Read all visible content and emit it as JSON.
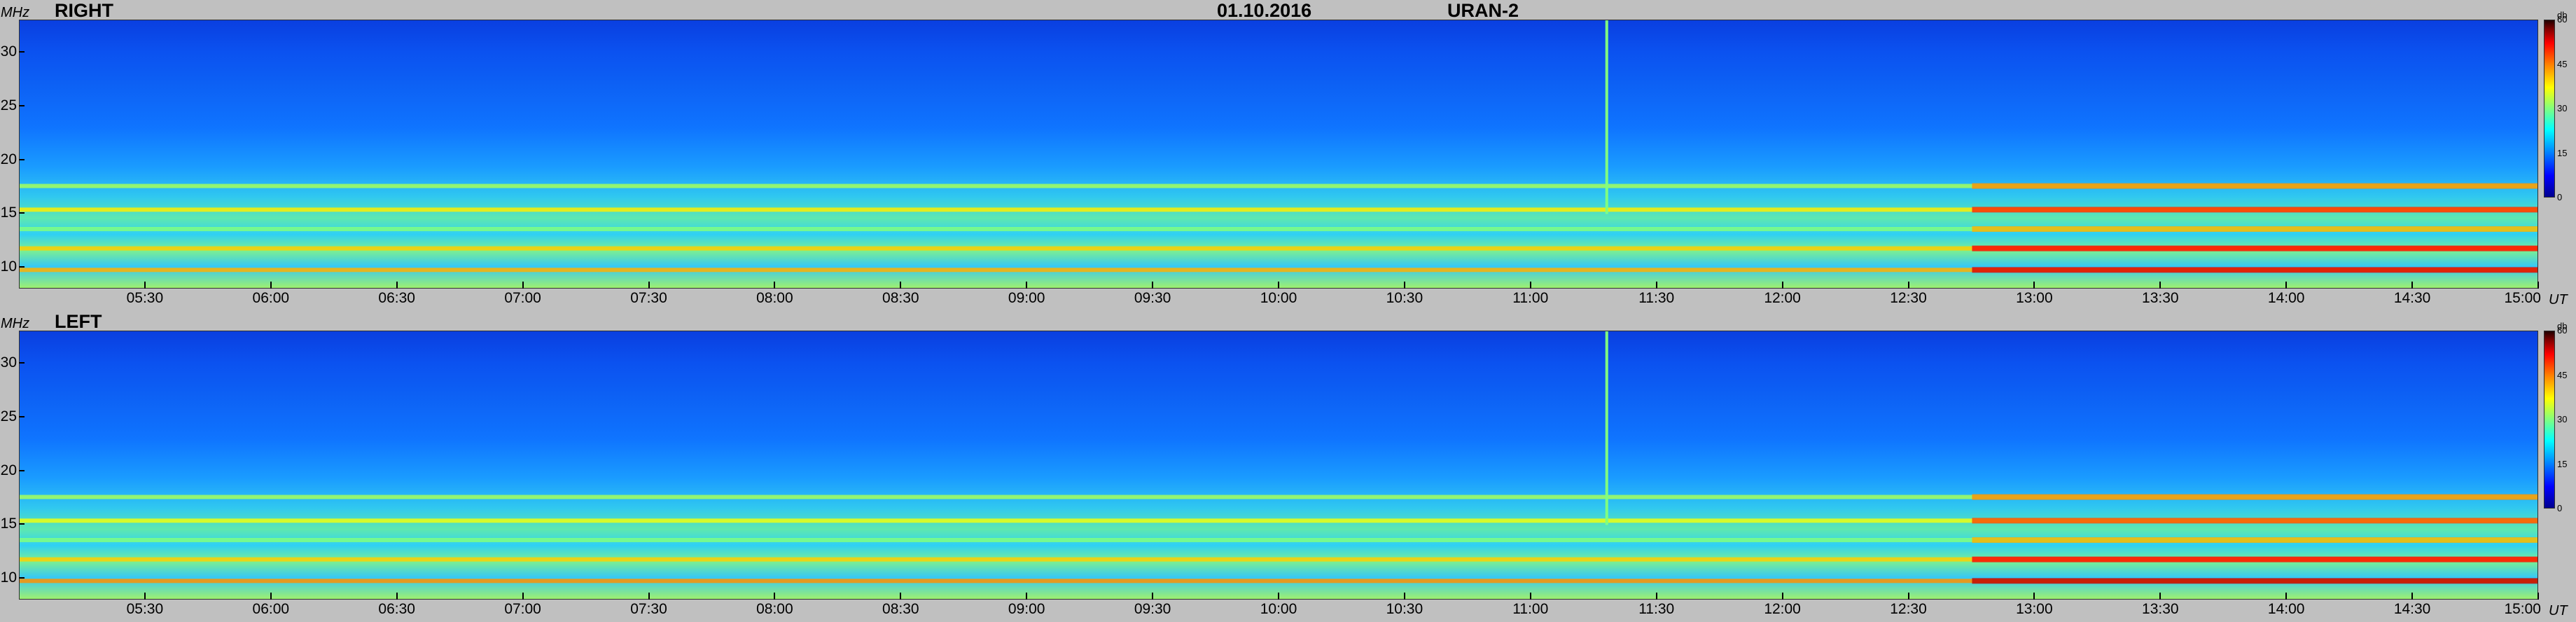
{
  "header": {
    "date": "01.10.2016",
    "station": "URAN-2"
  },
  "axis": {
    "y_unit": "MHz",
    "x_unit": "UT",
    "colorbar_unit": "db"
  },
  "panels": [
    {
      "label": "RIGHT"
    },
    {
      "label": "LEFT"
    }
  ],
  "chart_data": [
    {
      "type": "heatmap",
      "title": "RIGHT",
      "ylabel": "MHz",
      "xlabel": "UT",
      "x_ticks": [
        "05:30",
        "06:00",
        "06:30",
        "07:00",
        "07:30",
        "08:00",
        "08:30",
        "09:00",
        "09:30",
        "10:00",
        "10:30",
        "11:00",
        "11:30",
        "12:00",
        "12:30",
        "13:00",
        "13:30",
        "14:00",
        "14:30",
        "15:00"
      ],
      "y_ticks": [
        10,
        15,
        20,
        25,
        30
      ],
      "xlim": [
        "05:00",
        "15:00"
      ],
      "ylim": [
        8,
        33
      ],
      "colorbar": {
        "label": "db",
        "range": [
          0,
          60
        ],
        "ticks": [
          0,
          15,
          30,
          45,
          60
        ]
      },
      "features": [
        {
          "type": "horizontal_band",
          "freq_mhz": 17.6,
          "intensity_db": 32
        },
        {
          "type": "horizontal_band",
          "freq_mhz": 15.4,
          "intensity_db": 38
        },
        {
          "type": "horizontal_band",
          "freq_mhz": 13.6,
          "intensity_db": 30
        },
        {
          "type": "horizontal_band",
          "freq_mhz": 11.8,
          "intensity_db": 40
        },
        {
          "type": "horizontal_band",
          "freq_mhz": 9.8,
          "intensity_db": 42
        },
        {
          "type": "vertical_burst",
          "time": "11:18",
          "intensity_db": 30
        }
      ]
    },
    {
      "type": "heatmap",
      "title": "LEFT",
      "ylabel": "MHz",
      "xlabel": "UT",
      "x_ticks": [
        "05:30",
        "06:00",
        "06:30",
        "07:00",
        "07:30",
        "08:00",
        "08:30",
        "09:00",
        "09:30",
        "10:00",
        "10:30",
        "11:00",
        "11:30",
        "12:00",
        "12:30",
        "13:00",
        "13:30",
        "14:00",
        "14:30",
        "15:00"
      ],
      "y_ticks": [
        10,
        15,
        20,
        25,
        30
      ],
      "xlim": [
        "05:00",
        "15:00"
      ],
      "ylim": [
        8,
        33
      ],
      "colorbar": {
        "label": "db",
        "range": [
          0,
          60
        ],
        "ticks": [
          0,
          15,
          30,
          45,
          60
        ]
      },
      "features": [
        {
          "type": "horizontal_band",
          "freq_mhz": 17.6,
          "intensity_db": 32
        },
        {
          "type": "horizontal_band",
          "freq_mhz": 15.4,
          "intensity_db": 36
        },
        {
          "type": "horizontal_band",
          "freq_mhz": 13.6,
          "intensity_db": 30
        },
        {
          "type": "horizontal_band",
          "freq_mhz": 11.8,
          "intensity_db": 40
        },
        {
          "type": "horizontal_band",
          "freq_mhz": 9.8,
          "intensity_db": 44
        },
        {
          "type": "vertical_burst",
          "time": "11:18",
          "intensity_db": 30
        }
      ]
    }
  ]
}
